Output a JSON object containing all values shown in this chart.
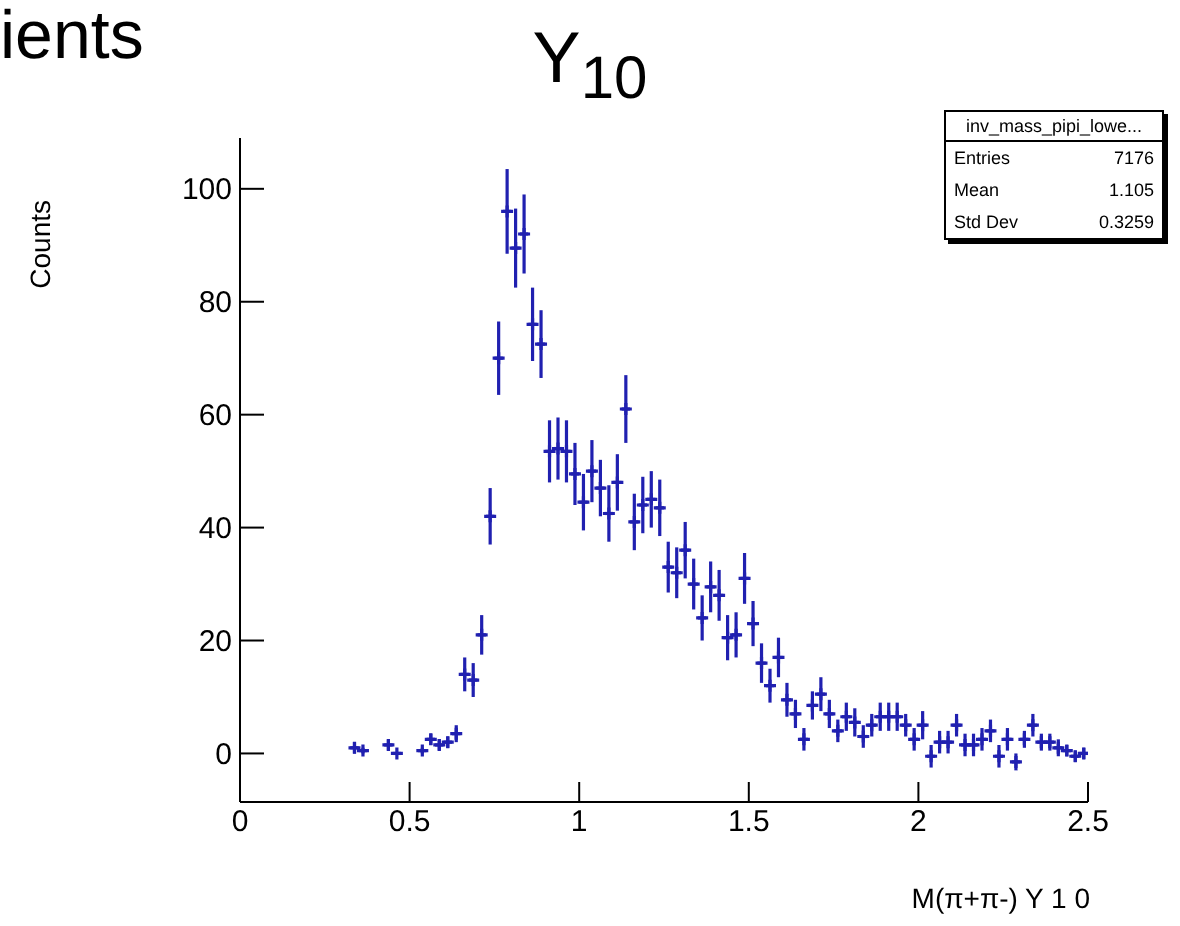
{
  "chart_data": {
    "type": "scatter",
    "title": "Y$_{10}$",
    "xlabel": "M(π+π-) Y  1  0",
    "ylabel": "Counts",
    "annotations": [
      "ients",
      "inv_mass_pipi_lowe...",
      "Entries",
      "7176",
      "Mean",
      "1.105",
      "Std Dev",
      "0.3259"
    ],
    "x": [
      0.3375,
      0.3625,
      0.4375,
      0.4625,
      0.5375,
      0.5625,
      0.5875,
      0.6125,
      0.6375,
      0.6625,
      0.6875,
      0.7125,
      0.7375,
      0.7625,
      0.7875,
      0.8125,
      0.8375,
      0.8625,
      0.8875,
      0.9125,
      0.9375,
      0.9625,
      0.9875,
      1.0125,
      1.0375,
      1.0625,
      1.0875,
      1.1125,
      1.1375,
      1.1625,
      1.1875,
      1.2125,
      1.2375,
      1.2625,
      1.2875,
      1.3125,
      1.3375,
      1.3625,
      1.3875,
      1.4125,
      1.4375,
      1.4625,
      1.4875,
      1.5125,
      1.5375,
      1.5625,
      1.5875,
      1.6125,
      1.6375,
      1.6625,
      1.6875,
      1.7125,
      1.7375,
      1.7625,
      1.7875,
      1.8125,
      1.8375,
      1.8625,
      1.8875,
      1.9125,
      1.9375,
      1.9625,
      1.9875,
      2.0125,
      2.0375,
      2.0625,
      2.0875,
      2.1125,
      2.1375,
      2.1625,
      2.1875,
      2.2125,
      2.2375,
      2.2625,
      2.2875,
      2.3125,
      2.3375,
      2.3625,
      2.3875,
      2.4125,
      2.4375,
      2.4625,
      2.4875
    ],
    "series": [
      {
        "color": "#2020b0",
        "values": [
          1,
          0.5,
          1.5,
          0,
          0.5,
          2.5,
          1.5,
          2,
          3.5,
          14,
          13,
          21,
          42,
          70,
          96,
          89.5,
          92,
          76,
          72.5,
          53.5,
          54,
          53.5,
          49.5,
          44.5,
          50,
          47,
          42.5,
          48,
          61,
          41,
          44,
          45,
          43.5,
          33,
          32,
          36,
          30,
          24,
          29.5,
          28,
          20.5,
          21,
          31,
          23,
          16,
          12,
          17,
          9.5,
          7,
          2.5,
          8.5,
          10.5,
          7,
          4,
          6.5,
          5.5,
          3,
          5,
          6.5,
          6.5,
          6.5,
          5,
          2.5,
          5,
          -0.5,
          2,
          2,
          5,
          1.5,
          1.5,
          2.5,
          4,
          -0.5,
          2.5,
          -1.5,
          2.5,
          5,
          2,
          2,
          1,
          0.5,
          -0.5,
          0
        ],
        "errors": [
          1,
          0.5,
          1,
          null,
          0.5,
          1,
          1,
          1,
          1.5,
          3,
          3,
          3.5,
          5,
          6.5,
          7.5,
          7,
          7,
          6.5,
          6,
          5.5,
          5.5,
          5.5,
          5.5,
          5,
          5.5,
          5,
          5,
          5,
          6,
          5,
          5,
          5,
          5,
          4.5,
          4.5,
          5,
          4.5,
          4,
          4.5,
          4.5,
          4,
          4,
          4.5,
          4,
          3.5,
          3,
          3.5,
          3,
          2.5,
          2,
          2.5,
          3,
          2.5,
          2,
          2.5,
          2.5,
          2,
          2,
          2.5,
          2.5,
          2.5,
          2,
          2,
          2.5,
          2,
          2,
          2,
          2,
          2,
          2,
          2,
          2,
          2,
          2,
          1.5,
          1.5,
          2,
          1.5,
          1.5,
          1.5,
          1,
          1,
          1
        ],
        "xerrors": [
          0.0125,
          0.0125,
          0.0125,
          0.0125,
          0.0125,
          0.0125,
          0.0125,
          0.0125,
          0.0125,
          0.0125,
          0.0125,
          0.0125,
          0.0125,
          0.0125,
          0.0125,
          0.0125,
          0.0125,
          0.0125,
          0.0125,
          0.0125,
          0.0125,
          0.0125,
          0.0125,
          0.0125,
          0.0125,
          0.0125,
          0.0125,
          0.0125,
          0.0125,
          0.0125,
          0.0125,
          0.0125,
          0.0125,
          0.0125,
          0.0125,
          0.0125,
          0.0125,
          0.0125,
          0.0125,
          0.0125,
          0.0125,
          0.0125,
          0.0125,
          0.0125,
          0.0125,
          0.0125,
          0.0125,
          0.0125,
          0.0125,
          0.0125,
          0.0125,
          0.0125,
          0.0125,
          0.0125,
          0.0125,
          0.0125,
          0.0125,
          0.0125,
          0.0125,
          0.0125,
          0.0125,
          0.0125,
          0.0125,
          0.0125,
          0.0125,
          0.0125,
          0.0125,
          0.0125,
          0.0125,
          0.0125,
          0.0125,
          0.0125,
          0.0125,
          0.0125,
          0.0125,
          0.0125,
          0.0125,
          0.0125,
          0.0125,
          0.0125,
          0.0125,
          0.0125,
          0.0125
        ]
      }
    ],
    "xlim": [
      0,
      2.5
    ],
    "xticks": [
      0,
      0.5,
      1,
      1.5,
      2,
      2.5
    ],
    "ylim": [
      -8.6,
      109
    ],
    "yticks": [
      0,
      20,
      40,
      60,
      80,
      100
    ],
    "grid": false,
    "legend": false,
    "marker": "cross"
  }
}
